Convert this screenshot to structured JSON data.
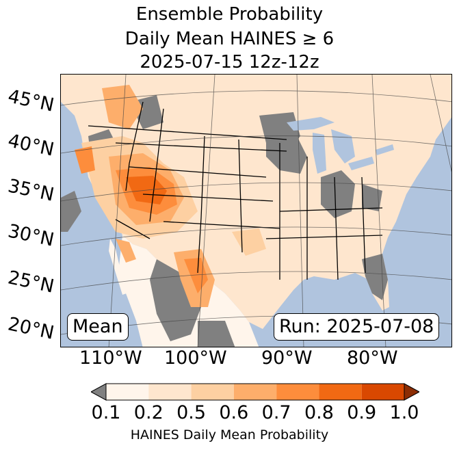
{
  "title": {
    "line1": "Ensemble Probability",
    "line2": "Daily Mean HAINES ≥ 6",
    "line3": "2025-07-15 12z-12z"
  },
  "map": {
    "lat_labels": [
      "45°N",
      "40°N",
      "35°N",
      "30°N",
      "25°N",
      "20°N"
    ],
    "lon_labels": [
      "110°W",
      "100°W",
      "90°W",
      "80°W"
    ],
    "mean_label": "Mean",
    "run_label": "Run: 2025-07-08",
    "colors": {
      "ocean": "#b0c4de",
      "no_data": "#808080",
      "p_0_1": "#fff5eb",
      "p_0_2": "#fee6ce",
      "p_0_5": "#fdd0a2",
      "p_0_6": "#fdae6b",
      "p_0_7": "#fd8d3c",
      "p_0_8": "#f16913",
      "p_0_9": "#d94801",
      "p_1_0": "#8c2d04"
    }
  },
  "colorbar": {
    "ticks": [
      "0.1",
      "0.2",
      "0.5",
      "0.6",
      "0.7",
      "0.8",
      "0.9",
      "1.0"
    ],
    "colors": [
      "#fff5eb",
      "#fee6ce",
      "#fdd0a2",
      "#fdae6b",
      "#fd8d3c",
      "#f16913",
      "#d94801"
    ],
    "under_color": "#808080",
    "over_color": "#8c2d04",
    "label": "HAINES Daily Mean Probability"
  }
}
